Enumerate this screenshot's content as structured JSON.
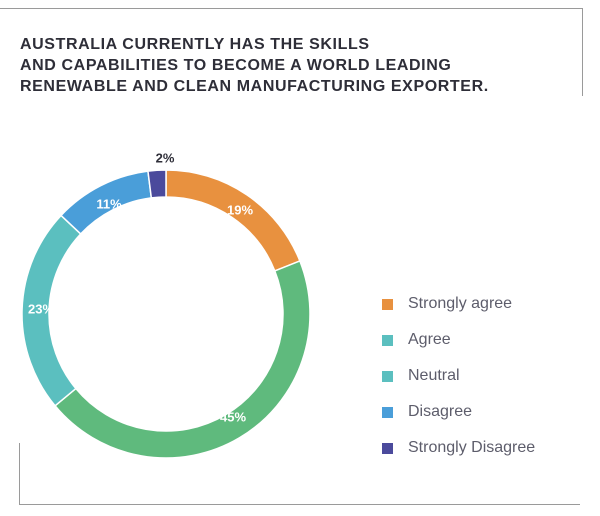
{
  "title_lines": [
    "AUSTRALIA CURRENTLY HAS THE SKILLS",
    "AND CAPABILITIES TO BECOME A WORLD LEADING",
    "RENEWABLE AND CLEAN MANUFACTURING EXPORTER."
  ],
  "chart_data": {
    "type": "pie",
    "style": "donut",
    "title": "AUSTRALIA CURRENTLY HAS THE SKILLS AND CAPABILITIES TO BECOME A WORLD LEADING RENEWABLE AND CLEAN MANUFACTURING EXPORTER.",
    "legend_position": "right",
    "slices": [
      {
        "label": "Strongly agree",
        "value": 19,
        "value_label": "19%",
        "color": "#e8913f",
        "legend_color": "#e8913f",
        "label_color": "#ffffff"
      },
      {
        "label": "Agree",
        "value": 45,
        "value_label": "45%",
        "color": "#5fba7d",
        "legend_color": "#5bbfbf",
        "label_color": "#ffffff"
      },
      {
        "label": "Neutral",
        "value": 23,
        "value_label": "23%",
        "color": "#5bbfbf",
        "legend_color": "#5bbfbf",
        "label_color": "#ffffff"
      },
      {
        "label": "Disagree",
        "value": 11,
        "value_label": "11%",
        "color": "#4a9ed9",
        "legend_color": "#4a9ed9",
        "label_color": "#ffffff"
      },
      {
        "label": "Strongly Disagree",
        "value": 2,
        "value_label": "2%",
        "color": "#4b4a9c",
        "legend_color": "#4b4a9c",
        "label_color": "#2e2e38"
      }
    ]
  }
}
